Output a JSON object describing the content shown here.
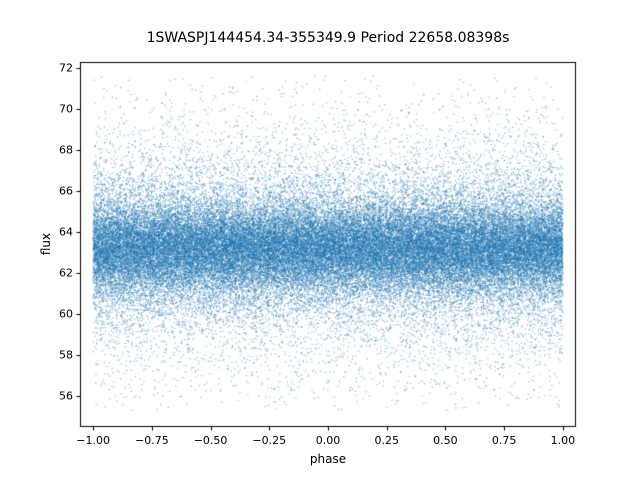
{
  "chart_data": {
    "type": "scatter",
    "title": "1SWASPJ144454.34-355349.9 Period 22658.08398s",
    "xlabel": "phase",
    "ylabel": "flux",
    "xlim": [
      -1.056,
      1.056
    ],
    "ylim": [
      54.5,
      72.3
    ],
    "x_ticks": [
      -1.0,
      -0.75,
      -0.5,
      -0.25,
      0.0,
      0.25,
      0.5,
      0.75,
      1.0
    ],
    "x_tick_labels": [
      "−1.00",
      "−0.75",
      "−0.50",
      "−0.25",
      "0.00",
      "0.25",
      "0.50",
      "0.75",
      "1.00"
    ],
    "y_ticks": [
      56,
      58,
      60,
      62,
      64,
      66,
      68,
      70,
      72
    ],
    "y_tick_labels": [
      "56",
      "58",
      "60",
      "62",
      "64",
      "66",
      "68",
      "70",
      "72"
    ],
    "marker_color": "#1f77b4",
    "marker_alpha": 0.5,
    "marker_size_px": 1.2,
    "n_points": 65000,
    "seed": 42,
    "x_distribution": {
      "type": "uniform",
      "min": -1.0,
      "max": 1.0
    },
    "y_distribution": {
      "type": "gaussian_mixture",
      "mean": 63.2,
      "components": [
        {
          "weight": 0.55,
          "std": 1.0
        },
        {
          "weight": 0.3,
          "std": 1.9
        },
        {
          "weight": 0.15,
          "std": 3.4
        }
      ],
      "clip_min": 55.3,
      "clip_max": 71.7
    },
    "grid": false,
    "legend": null
  }
}
